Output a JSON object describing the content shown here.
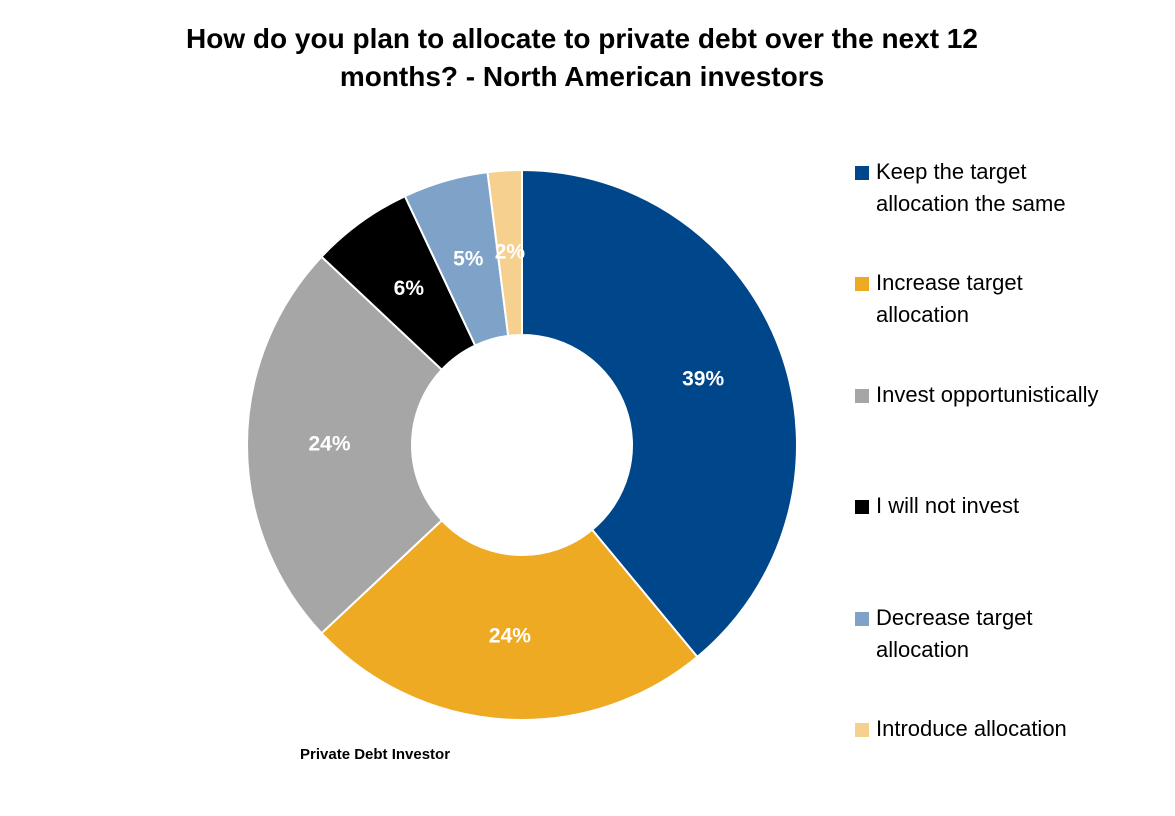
{
  "chart_data": {
    "type": "pie",
    "title": "How do you plan to allocate to private debt over the next 12 months? - North American investors",
    "categories": [
      "Keep the target allocation the same",
      "Increase target allocation",
      "Invest opportunistically",
      "I will not invest",
      "Decrease target allocation",
      "Introduce allocation"
    ],
    "values": [
      39,
      24,
      24,
      6,
      5,
      2
    ],
    "value_labels": [
      "39%",
      "24%",
      "24%",
      "6%",
      "5%",
      "2%"
    ],
    "colors": [
      "#00468b",
      "#eeaa22",
      "#a6a6a6",
      "#000000",
      "#7fa3c8",
      "#f5d08f"
    ],
    "source": "Private Debt Investor"
  }
}
